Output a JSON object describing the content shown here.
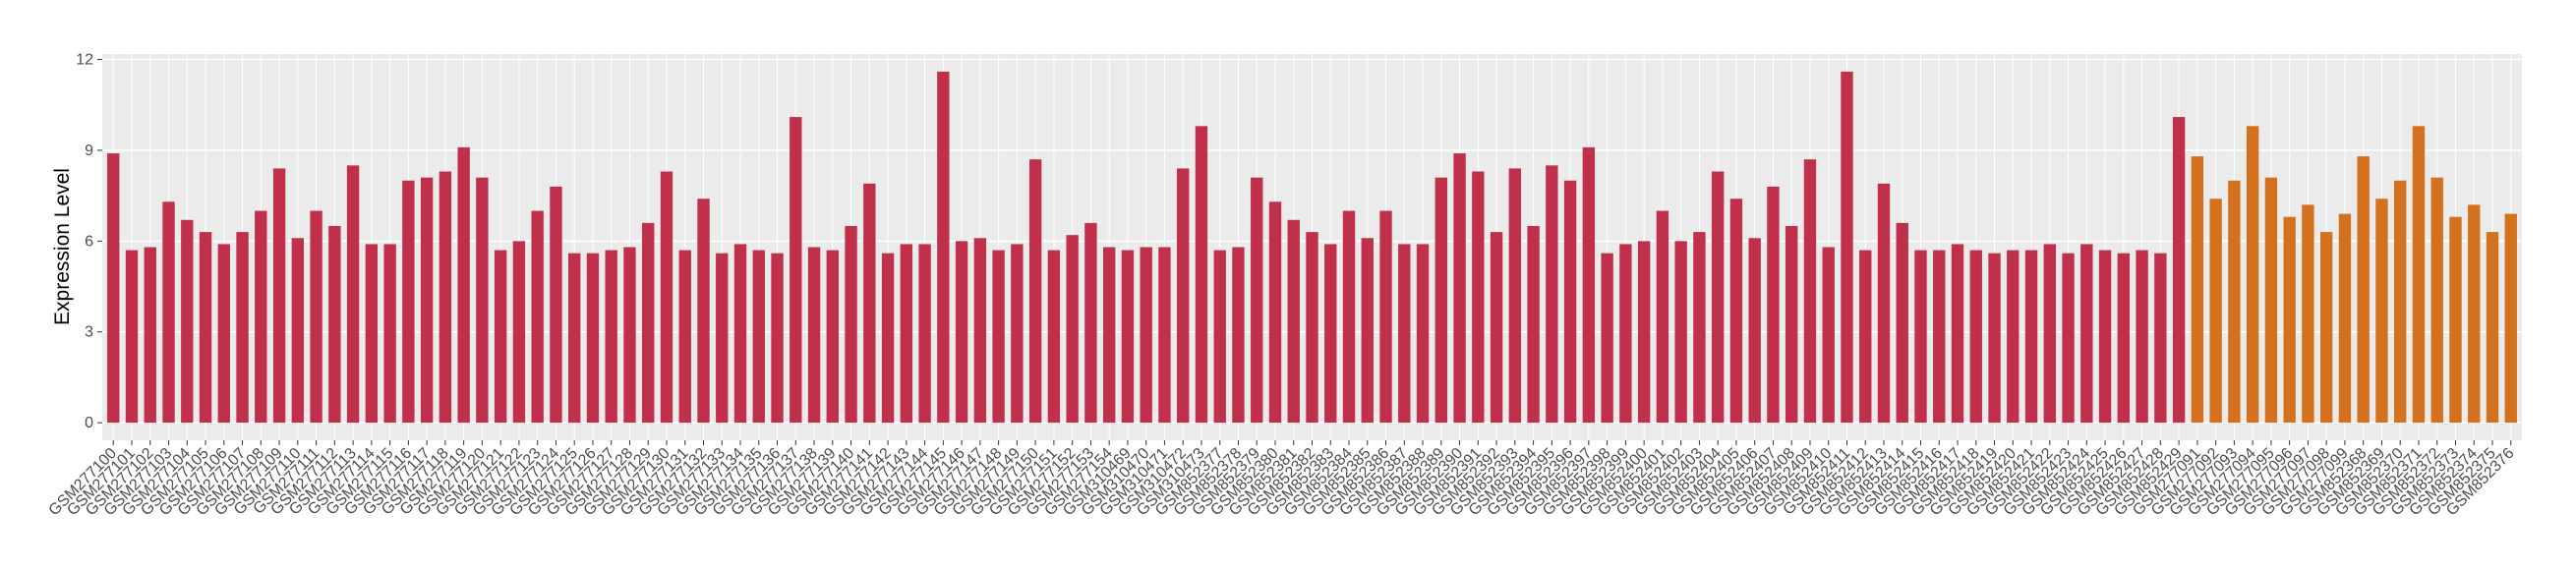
{
  "chart_data": {
    "type": "bar",
    "y_label": "Expression Level",
    "categories": [
      "GSM277100",
      "GSM277101",
      "GSM277102",
      "GSM277103",
      "GSM277104",
      "GSM277105",
      "GSM277106",
      "GSM277107",
      "GSM277108",
      "GSM277109",
      "GSM277110",
      "GSM277111",
      "GSM277112",
      "GSM277113",
      "GSM277114",
      "GSM277115",
      "GSM277116",
      "GSM277117",
      "GSM277118",
      "GSM277119",
      "GSM277120",
      "GSM277121",
      "GSM277122",
      "GSM277123",
      "GSM277124",
      "GSM277125",
      "GSM277126",
      "GSM277127",
      "GSM277128",
      "GSM277129",
      "GSM277130",
      "GSM277131",
      "GSM277132",
      "GSM277133",
      "GSM277134",
      "GSM277135",
      "GSM277136",
      "GSM277137",
      "GSM277138",
      "GSM277139",
      "GSM277140",
      "GSM277141",
      "GSM277142",
      "GSM277143",
      "GSM277144",
      "GSM277145",
      "GSM277146",
      "GSM277147",
      "GSM277148",
      "GSM277149",
      "GSM277150",
      "GSM277151",
      "GSM277152",
      "GSM277153",
      "GSM277154",
      "GSM310469",
      "GSM310470",
      "GSM310471",
      "GSM310472",
      "GSM310473",
      "GSM852377",
      "GSM852378",
      "GSM852379",
      "GSM852380",
      "GSM852381",
      "GSM852382",
      "GSM852383",
      "GSM852384",
      "GSM852385",
      "GSM852386",
      "GSM852387",
      "GSM852388",
      "GSM852389",
      "GSM852390",
      "GSM852391",
      "GSM852392",
      "GSM852393",
      "GSM852394",
      "GSM852395",
      "GSM852396",
      "GSM852397",
      "GSM852398",
      "GSM852399",
      "GSM852400",
      "GSM852401",
      "GSM852402",
      "GSM852403",
      "GSM852404",
      "GSM852405",
      "GSM852406",
      "GSM852407",
      "GSM852408",
      "GSM852409",
      "GSM852410",
      "GSM852411",
      "GSM852412",
      "GSM852413",
      "GSM852414",
      "GSM852415",
      "GSM852416",
      "GSM852417",
      "GSM852418",
      "GSM852419",
      "GSM852420",
      "GSM852421",
      "GSM852422",
      "GSM852423",
      "GSM852424",
      "GSM852425",
      "GSM852426",
      "GSM852427",
      "GSM852428",
      "GSM852429",
      "GSM277091",
      "GSM277092",
      "GSM277093",
      "GSM277094",
      "GSM277095",
      "GSM277096",
      "GSM277097",
      "GSM277098",
      "GSM277099",
      "GSM852368",
      "GSM852369",
      "GSM852370",
      "GSM852371",
      "GSM852372",
      "GSM852373",
      "GSM852374",
      "GSM852375",
      "GSM852376"
    ],
    "values": [
      8.9,
      5.7,
      5.8,
      7.3,
      6.7,
      6.3,
      5.9,
      6.3,
      7.0,
      8.4,
      6.1,
      7.0,
      6.5,
      8.5,
      5.9,
      5.9,
      8.0,
      8.1,
      8.3,
      9.1,
      8.1,
      5.7,
      6.0,
      7.0,
      7.8,
      5.6,
      5.6,
      5.7,
      5.8,
      6.6,
      8.3,
      5.7,
      7.4,
      5.6,
      5.9,
      5.7,
      5.6,
      10.1,
      5.8,
      5.7,
      6.5,
      7.9,
      5.6,
      5.9,
      5.9,
      11.6,
      6.0,
      6.1,
      5.7,
      5.9,
      8.7,
      5.7,
      6.2,
      6.6,
      5.8,
      5.7,
      5.8,
      5.8,
      8.4,
      9.8,
      5.7,
      5.8,
      8.1,
      7.3,
      6.7,
      6.3,
      5.9,
      7.0,
      6.1,
      7.0,
      5.9,
      5.9,
      8.1,
      8.9,
      8.3,
      6.3,
      8.4,
      6.5,
      8.5,
      8.0,
      9.1,
      5.6,
      5.9,
      6.0,
      7.0,
      6.0,
      6.3,
      8.3,
      7.4,
      6.1,
      7.8,
      6.5,
      8.7,
      5.8,
      11.6,
      5.7,
      7.9,
      6.6,
      5.7,
      5.7,
      5.9,
      5.7,
      5.6,
      5.7,
      5.7,
      5.9,
      5.6,
      5.9,
      5.7,
      5.6,
      5.7,
      5.6,
      10.1,
      8.8,
      7.4,
      8.0,
      9.8,
      8.1,
      6.8,
      7.2,
      6.3,
      6.9,
      8.8,
      7.4,
      8.0,
      9.8,
      8.1,
      6.8,
      7.2,
      6.3,
      6.9
    ],
    "colors": [
      "#c0304a",
      "#c0304a",
      "#c0304a",
      "#c0304a",
      "#c0304a",
      "#c0304a",
      "#c0304a",
      "#c0304a",
      "#c0304a",
      "#c0304a",
      "#c0304a",
      "#c0304a",
      "#c0304a",
      "#c0304a",
      "#c0304a",
      "#c0304a",
      "#c0304a",
      "#c0304a",
      "#c0304a",
      "#c0304a",
      "#c0304a",
      "#c0304a",
      "#c0304a",
      "#c0304a",
      "#c0304a",
      "#c0304a",
      "#c0304a",
      "#c0304a",
      "#c0304a",
      "#c0304a",
      "#c0304a",
      "#c0304a",
      "#c0304a",
      "#c0304a",
      "#c0304a",
      "#c0304a",
      "#c0304a",
      "#c0304a",
      "#c0304a",
      "#c0304a",
      "#c0304a",
      "#c0304a",
      "#c0304a",
      "#c0304a",
      "#c0304a",
      "#c0304a",
      "#c0304a",
      "#c0304a",
      "#c0304a",
      "#c0304a",
      "#c0304a",
      "#c0304a",
      "#c0304a",
      "#c0304a",
      "#c0304a",
      "#c0304a",
      "#c0304a",
      "#c0304a",
      "#c0304a",
      "#c0304a",
      "#c0304a",
      "#c0304a",
      "#c0304a",
      "#c0304a",
      "#c0304a",
      "#c0304a",
      "#c0304a",
      "#c0304a",
      "#c0304a",
      "#c0304a",
      "#c0304a",
      "#c0304a",
      "#c0304a",
      "#c0304a",
      "#c0304a",
      "#c0304a",
      "#c0304a",
      "#c0304a",
      "#c0304a",
      "#c0304a",
      "#c0304a",
      "#c0304a",
      "#c0304a",
      "#c0304a",
      "#c0304a",
      "#c0304a",
      "#c0304a",
      "#c0304a",
      "#c0304a",
      "#c0304a",
      "#c0304a",
      "#c0304a",
      "#c0304a",
      "#c0304a",
      "#c0304a",
      "#c0304a",
      "#c0304a",
      "#c0304a",
      "#c0304a",
      "#c0304a",
      "#c0304a",
      "#c0304a",
      "#c0304a",
      "#c0304a",
      "#c0304a",
      "#c0304a",
      "#c0304a",
      "#c0304a",
      "#c0304a",
      "#c0304a",
      "#c0304a",
      "#c0304a",
      "#c0304a",
      "#d4711f",
      "#d4711f",
      "#d4711f",
      "#d4711f",
      "#d4711f",
      "#d4711f",
      "#d4711f",
      "#d4711f",
      "#d4711f",
      "#d4711f",
      "#d4711f",
      "#d4711f",
      "#d4711f",
      "#d4711f",
      "#d4711f",
      "#d4711f",
      "#d4711f",
      "#d4711f"
    ],
    "ylim": [
      -0.58,
      12.18
    ],
    "yticks": [
      0,
      3,
      6,
      9,
      12
    ],
    "grid": true
  }
}
